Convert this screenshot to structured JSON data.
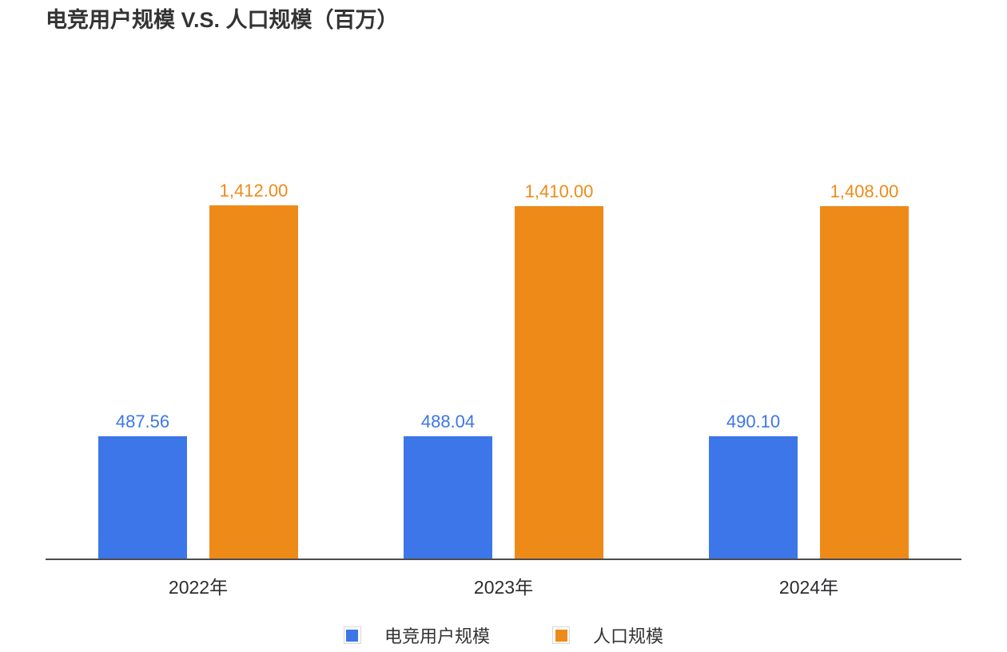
{
  "title": "电竞用户规模 V.S. 人口规模（百万）",
  "chart_data": {
    "type": "bar",
    "title": "电竞用户规模 V.S. 人口规模（百万）",
    "categories": [
      "2022年",
      "2023年",
      "2024年"
    ],
    "series": [
      {
        "name": "电竞用户规模",
        "color": "#3D76E8",
        "values": [
          487.56,
          488.04,
          490.1
        ],
        "value_labels": [
          "487.56",
          "488.04",
          "490.10"
        ]
      },
      {
        "name": "人口规模",
        "color": "#EE8A18",
        "values": [
          1412.0,
          1410.0,
          1408.0
        ],
        "value_labels": [
          "1,412.00",
          "1,410.00",
          "1,408.00"
        ]
      }
    ],
    "xlabel": "",
    "ylabel": "",
    "ylim": [
      0,
      1500
    ],
    "grid": false,
    "y_axis_shown": false,
    "value_labels_shown": true,
    "legend_position": "bottom"
  },
  "legend": {
    "items": [
      {
        "label": "电竞用户规模",
        "color": "#3D76E8"
      },
      {
        "label": "人口规模",
        "color": "#EE8A18"
      }
    ]
  },
  "colors": {
    "background": "#FFFFFF",
    "title_text": "#333333",
    "axis_line": "#4C4C4C",
    "category_text": "#2D2D30",
    "series_blue": "#3D76E8",
    "series_orange": "#EE8A18",
    "legend_marker_border": "#D8D8D8"
  }
}
